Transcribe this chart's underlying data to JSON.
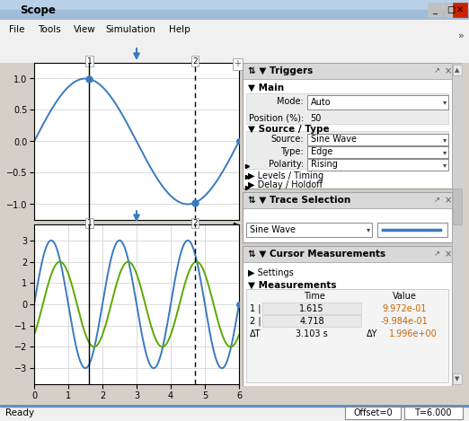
{
  "title": "Scope",
  "window_bg": "#dce6f0",
  "frame_bg": "#d4d0c8",
  "plot_bg": "#ffffff",
  "sine_color": "#3a7abf",
  "green_color": "#5aaa00",
  "cursor1_x": 1.615,
  "cursor2_x": 4.718,
  "xlim": [
    0,
    6
  ],
  "ylim1": [
    -1.25,
    1.25
  ],
  "ylim2": [
    -3.75,
    3.75
  ],
  "yticks1": [
    -1,
    -0.5,
    0,
    0.5,
    1
  ],
  "yticks2": [
    -3,
    -2,
    -1,
    0,
    1,
    2,
    3
  ],
  "xticks": [
    0,
    1,
    2,
    3,
    4,
    5,
    6
  ],
  "value_color": "#c86400",
  "panel_bg": "#f0f0f0",
  "header_bg": "#e0e0e0",
  "grid_color": "#cccccc",
  "title_bar_top": "#b8d4f0",
  "title_bar_bot": "#6a9ed4",
  "status_bg": "#e8e8e8"
}
